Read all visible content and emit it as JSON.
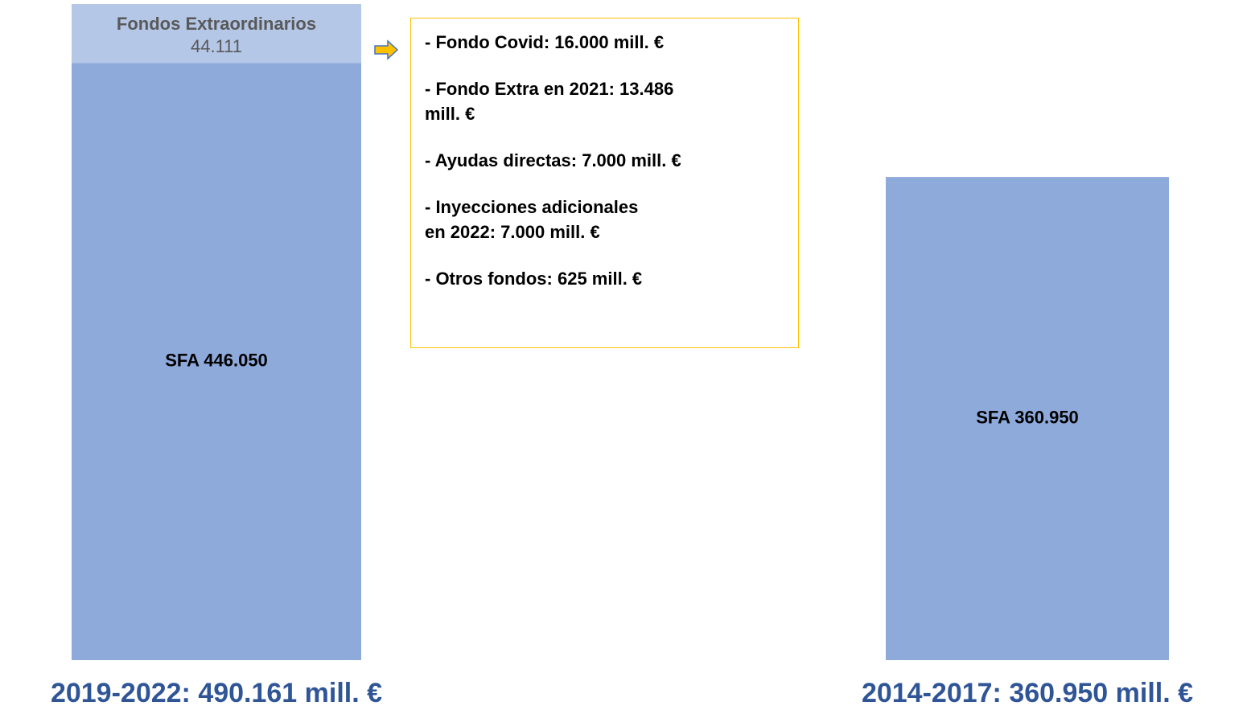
{
  "chart_data": {
    "type": "stacked_bar",
    "categories": [
      "2019-2022: 490.161 mill. €",
      "2014-2017: 360.950 mill. €"
    ],
    "series": [
      {
        "name": "SFA",
        "color": "#8eaadb",
        "values": [
          446050,
          360950
        ],
        "value_labels": [
          "SFA 446.050",
          "SFA 360.950"
        ]
      },
      {
        "name": "Fondos Extraordinarios",
        "color": "#b4c7e7",
        "values": [
          44111,
          null
        ],
        "value_labels": [
          "44.111",
          null
        ]
      }
    ],
    "ylim": [
      0,
      490161
    ],
    "annotation": {
      "border_color": "#ffc000",
      "items": [
        [
          "- Fondo Covid: 16.000 mill. €"
        ],
        [
          "- Fondo Extra en 2021: 13.486",
          "mill. €"
        ],
        [
          "- Ayudas directas: 7.000 mill. €"
        ],
        [
          "- Inyecciones adicionales",
          "en 2022: 7.000 mill. €"
        ],
        [
          "- Otros fondos: 625 mill. €"
        ]
      ]
    }
  }
}
